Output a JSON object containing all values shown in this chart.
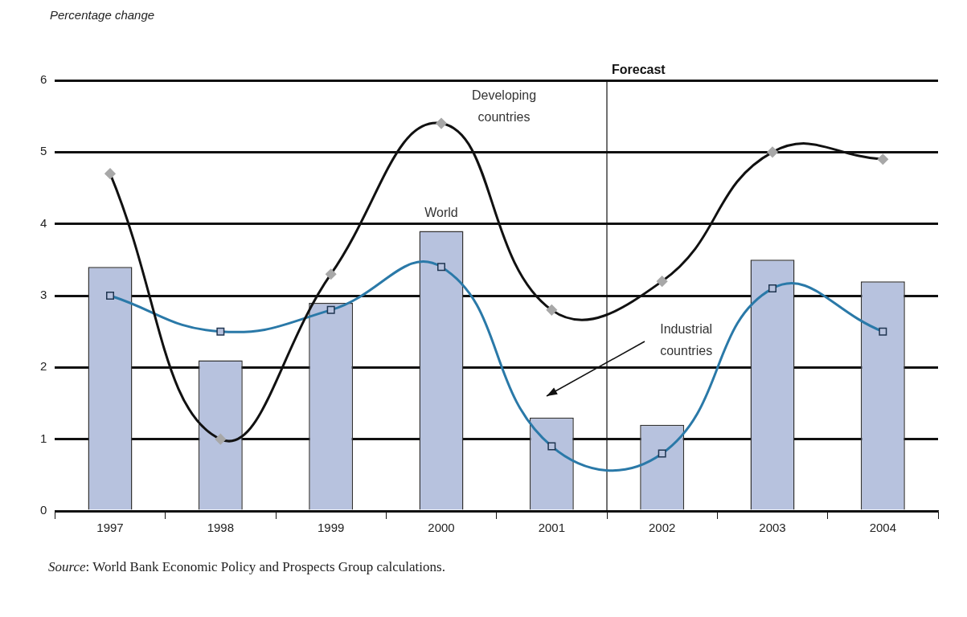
{
  "chart_data": {
    "type": "bar",
    "ylabel": "Percentage change",
    "x": [
      1997,
      1998,
      1999,
      2000,
      2001,
      2002,
      2003,
      2004
    ],
    "xlim": [
      1996.5,
      2004.5
    ],
    "xticks": [
      1997,
      1998,
      1999,
      2000,
      2001,
      2002,
      2003,
      2004
    ],
    "ylim": [
      0,
      6
    ],
    "yticks": [
      0,
      1,
      2,
      3,
      4,
      5,
      6
    ],
    "grid": "y",
    "legend": false,
    "series": [
      {
        "name": "World",
        "color": "#b7c2de",
        "values": [
          3.4,
          2.1,
          2.9,
          3.9,
          1.3,
          1.2,
          3.5,
          3.2
        ]
      },
      {
        "name": "Developing countries",
        "type": "line",
        "marker": "diamond",
        "color": "#111111",
        "values": [
          4.7,
          1.0,
          3.3,
          5.4,
          2.8,
          3.2,
          5.0,
          4.9
        ]
      },
      {
        "name": "Industrial countries",
        "type": "line",
        "marker": "square",
        "color": "#2a79a8",
        "values": [
          3.0,
          2.5,
          2.8,
          3.4,
          0.9,
          0.8,
          3.1,
          2.5
        ]
      }
    ],
    "ref_lines": [
      {
        "axis": "x",
        "value": 2001.5,
        "label": "Forecast",
        "color": "#111111"
      }
    ],
    "annotations": [
      "Source: World Bank Economic Policy and Prospects Group calculations."
    ]
  }
}
